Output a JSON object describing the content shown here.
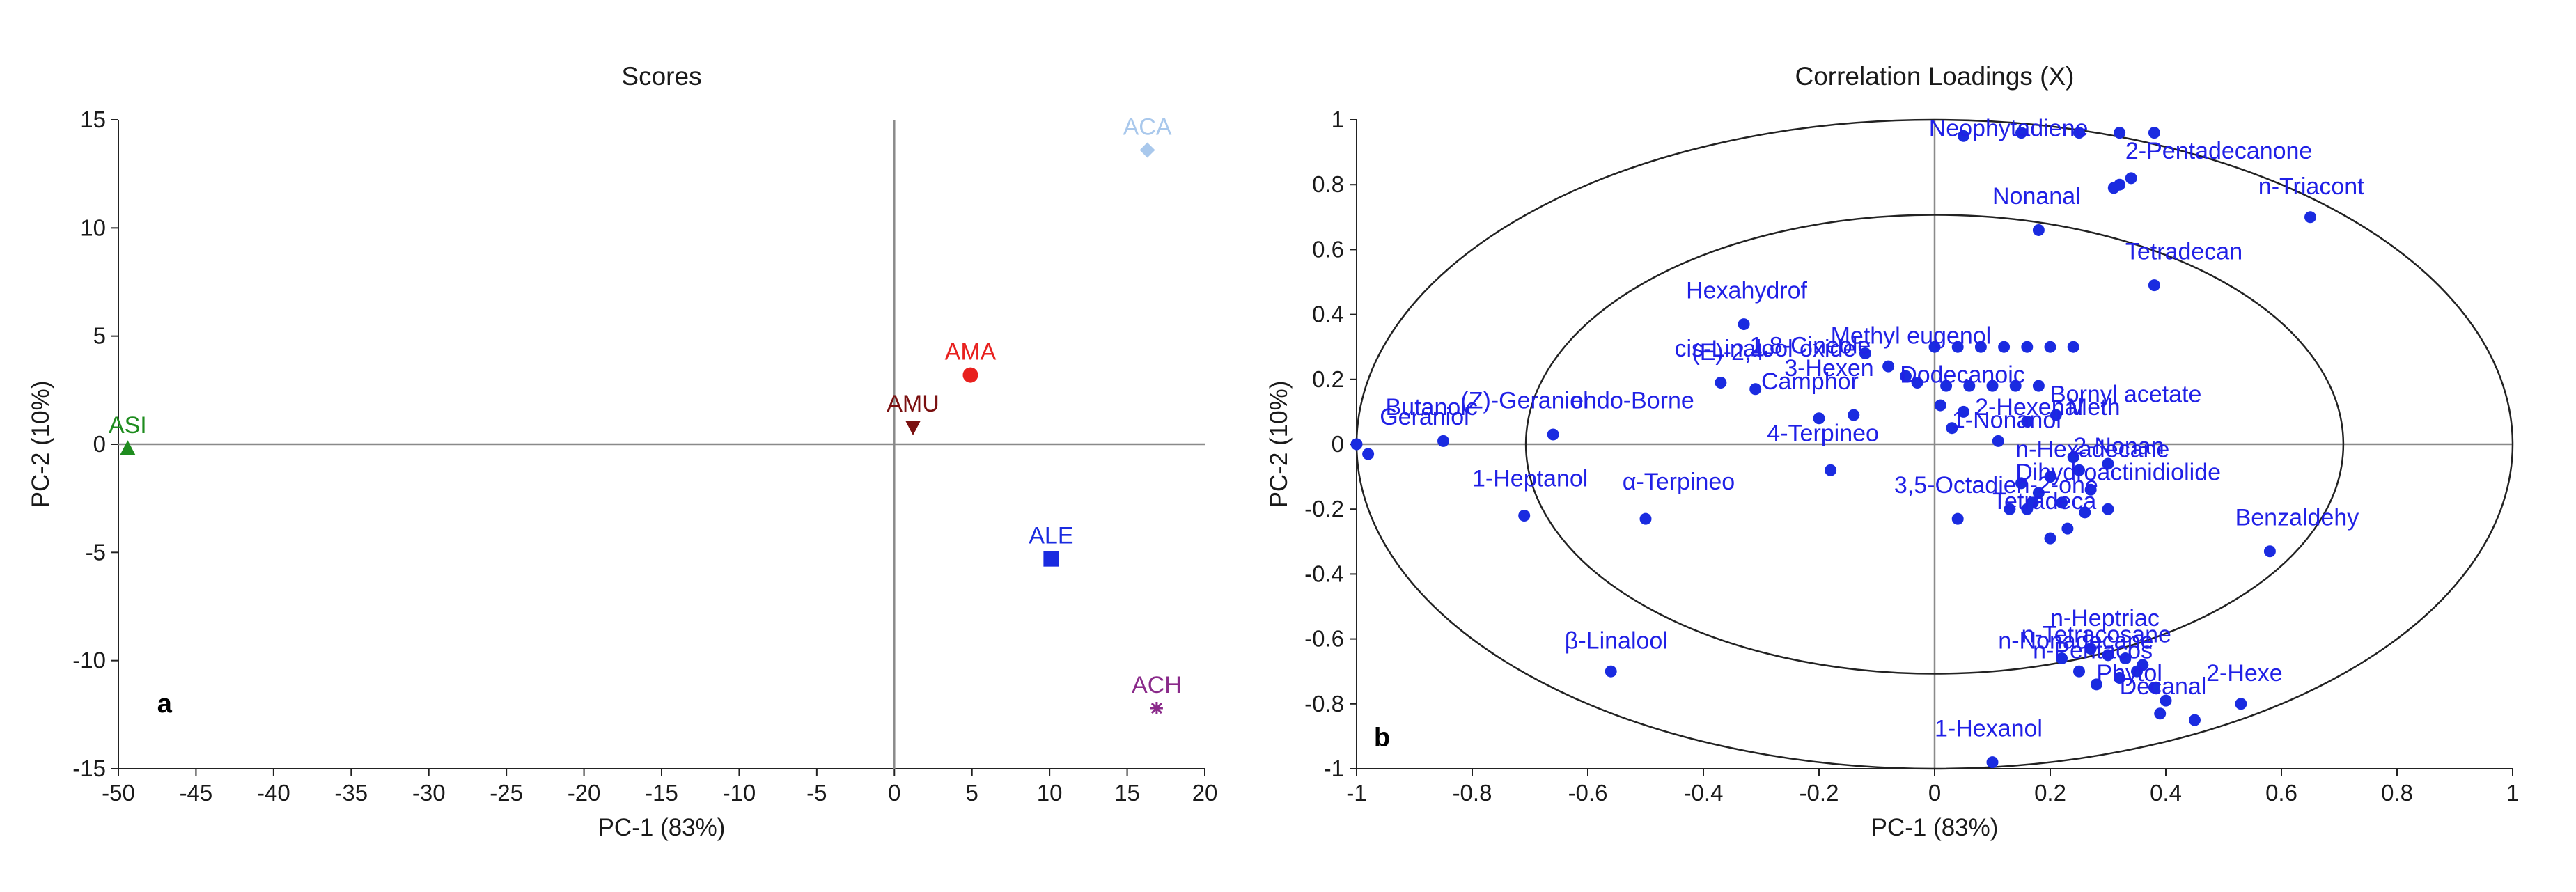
{
  "chart_data": [
    {
      "type": "scatter",
      "title": "Scores",
      "xlabel": "PC-1 (83%)",
      "ylabel": "PC-2 (10%)",
      "panel_label": "a",
      "xlim": [
        -50,
        20
      ],
      "ylim": [
        -15,
        15
      ],
      "xticks": [
        -50,
        -45,
        -40,
        -35,
        -30,
        -25,
        -20,
        -15,
        -10,
        -5,
        0,
        5,
        10,
        15,
        20
      ],
      "yticks": [
        -15,
        -10,
        -5,
        0,
        5,
        10,
        15
      ],
      "points": [
        {
          "label": "ACA",
          "x": 16.3,
          "y": 13.6,
          "marker": "diamond",
          "color": "#a9c8ec"
        },
        {
          "label": "AMA",
          "x": 4.9,
          "y": 3.2,
          "marker": "circle",
          "color": "#e8201e"
        },
        {
          "label": "AMU",
          "x": 1.2,
          "y": 0.8,
          "marker": "triangle-down",
          "color": "#7a1010"
        },
        {
          "label": "ASI",
          "x": -49.4,
          "y": -0.2,
          "marker": "triangle-up",
          "color": "#1e8c1e"
        },
        {
          "label": "ALE",
          "x": 10.1,
          "y": -5.3,
          "marker": "square",
          "color": "#1a2be0"
        },
        {
          "label": "ACH",
          "x": 16.9,
          "y": -12.2,
          "marker": "star",
          "color": "#8a2a8a"
        }
      ]
    },
    {
      "type": "scatter",
      "title": "Correlation Loadings (X)",
      "xlabel": "PC-1 (83%)",
      "ylabel": "PC-2 (10%)",
      "panel_label": "b",
      "xlim": [
        -1,
        1
      ],
      "ylim": [
        -1,
        1
      ],
      "xticks": [
        -1,
        -0.8,
        -0.6,
        -0.4,
        -0.2,
        0,
        0.2,
        0.4,
        0.6,
        0.8,
        1
      ],
      "yticks": [
        -1,
        -0.8,
        -0.6,
        -0.4,
        -0.2,
        0,
        0.2,
        0.4,
        0.6,
        0.8,
        1
      ],
      "circles": [
        1.0,
        0.7071
      ],
      "point_color": "#1a2be0",
      "labels": [
        {
          "text": "Neophytadiene",
          "x": -0.01,
          "y": 0.95
        },
        {
          "text": "2-Pentadecanone",
          "x": 0.33,
          "y": 0.88
        },
        {
          "text": "Nonanal",
          "x": 0.1,
          "y": 0.74
        },
        {
          "text": "n-Triacont",
          "x": 0.56,
          "y": 0.77
        },
        {
          "text": "Tetradecan",
          "x": 0.33,
          "y": 0.57
        },
        {
          "text": "Hexahydrof",
          "x": -0.43,
          "y": 0.45
        },
        {
          "text": "cis-Linalool oxide",
          "x": -0.45,
          "y": 0.27
        },
        {
          "text": "1,8-Cineole",
          "x": -0.32,
          "y": 0.28
        },
        {
          "text": "(E)-2,4-",
          "x": -0.42,
          "y": 0.26
        },
        {
          "text": "Methyl eugenol",
          "x": -0.18,
          "y": 0.31
        },
        {
          "text": "Dodecanoic",
          "x": -0.06,
          "y": 0.19
        },
        {
          "text": "Camphor",
          "x": -0.3,
          "y": 0.17
        },
        {
          "text": "3-Hexen",
          "x": -0.26,
          "y": 0.21
        },
        {
          "text": "Bornyl acetate",
          "x": 0.2,
          "y": 0.13
        },
        {
          "text": "endo-Borne",
          "x": -0.63,
          "y": 0.11
        },
        {
          "text": "(Z)-Geraniol",
          "x": -0.82,
          "y": 0.11
        },
        {
          "text": "Butanoic",
          "x": -0.95,
          "y": 0.09
        },
        {
          "text": "Geraniol",
          "x": -0.96,
          "y": 0.06
        },
        {
          "text": "4-Terpineo",
          "x": -0.29,
          "y": 0.01
        },
        {
          "text": "1-Nonanol",
          "x": 0.03,
          "y": 0.05
        },
        {
          "text": "2-Hexenal",
          "x": 0.07,
          "y": 0.09
        },
        {
          "text": "Meth",
          "x": 0.23,
          "y": 0.09
        },
        {
          "text": "n-Hexadecane",
          "x": 0.14,
          "y": -0.04
        },
        {
          "text": "2-Nonan",
          "x": 0.24,
          "y": -0.03
        },
        {
          "text": "3,5-Octadien-2-one",
          "x": -0.07,
          "y": -0.15
        },
        {
          "text": "Dihydroactinidiolide",
          "x": 0.14,
          "y": -0.11
        },
        {
          "text": "Tetradeca",
          "x": 0.1,
          "y": -0.2
        },
        {
          "text": "1-Heptanol",
          "x": -0.8,
          "y": -0.13
        },
        {
          "text": "α-Terpineo",
          "x": -0.54,
          "y": -0.14
        },
        {
          "text": "Benzaldehy",
          "x": 0.52,
          "y": -0.25
        },
        {
          "text": "n-Heptriac",
          "x": 0.2,
          "y": -0.56
        },
        {
          "text": "n-Tetracosane",
          "x": 0.15,
          "y": -0.61
        },
        {
          "text": "n-Pentacos",
          "x": 0.17,
          "y": -0.66
        },
        {
          "text": "n-Nonadecane",
          "x": 0.11,
          "y": -0.63
        },
        {
          "text": "2-Hexe",
          "x": 0.47,
          "y": -0.73
        },
        {
          "text": "Phytol",
          "x": 0.28,
          "y": -0.73
        },
        {
          "text": "Decanal",
          "x": 0.32,
          "y": -0.77
        },
        {
          "text": "β-Linalool",
          "x": -0.64,
          "y": -0.63
        },
        {
          "text": "1-Hexanol",
          "x": 0.0,
          "y": -0.9
        }
      ],
      "points": [
        [
          -1.0,
          0.0
        ],
        [
          -0.98,
          -0.03
        ],
        [
          -0.85,
          0.01
        ],
        [
          -0.71,
          -0.22
        ],
        [
          -0.66,
          0.03
        ],
        [
          -0.56,
          -0.7
        ],
        [
          -0.5,
          -0.23
        ],
        [
          -0.37,
          0.19
        ],
        [
          -0.33,
          0.37
        ],
        [
          -0.31,
          0.17
        ],
        [
          -0.2,
          0.08
        ],
        [
          -0.18,
          -0.08
        ],
        [
          -0.14,
          0.09
        ],
        [
          -0.12,
          0.28
        ],
        [
          -0.08,
          0.24
        ],
        [
          -0.05,
          0.21
        ],
        [
          -0.03,
          0.19
        ],
        [
          0.0,
          0.3
        ],
        [
          0.04,
          0.3
        ],
        [
          0.08,
          0.3
        ],
        [
          0.12,
          0.3
        ],
        [
          0.16,
          0.3
        ],
        [
          0.2,
          0.3
        ],
        [
          0.24,
          0.3
        ],
        [
          0.02,
          0.18
        ],
        [
          0.06,
          0.18
        ],
        [
          0.1,
          0.18
        ],
        [
          0.14,
          0.18
        ],
        [
          0.18,
          0.18
        ],
        [
          0.01,
          0.12
        ],
        [
          0.05,
          0.1
        ],
        [
          0.03,
          0.05
        ],
        [
          0.11,
          0.01
        ],
        [
          0.16,
          0.07
        ],
        [
          0.21,
          0.09
        ],
        [
          0.05,
          0.95
        ],
        [
          0.15,
          0.96
        ],
        [
          0.25,
          0.96
        ],
        [
          0.32,
          0.96
        ],
        [
          0.38,
          0.96
        ],
        [
          0.31,
          0.79
        ],
        [
          0.32,
          0.8
        ],
        [
          0.34,
          0.82
        ],
        [
          0.18,
          0.66
        ],
        [
          0.38,
          0.49
        ],
        [
          0.65,
          0.7
        ],
        [
          0.58,
          -0.33
        ],
        [
          0.04,
          -0.23
        ],
        [
          0.13,
          -0.2
        ],
        [
          0.17,
          -0.18
        ],
        [
          0.2,
          -0.29
        ],
        [
          0.23,
          -0.26
        ],
        [
          0.26,
          -0.21
        ],
        [
          0.3,
          -0.2
        ],
        [
          0.22,
          -0.18
        ],
        [
          0.18,
          -0.15
        ],
        [
          0.15,
          -0.12
        ],
        [
          0.2,
          -0.1
        ],
        [
          0.25,
          -0.08
        ],
        [
          0.27,
          -0.14
        ],
        [
          0.16,
          -0.2
        ],
        [
          0.24,
          -0.04
        ],
        [
          0.3,
          -0.06
        ],
        [
          0.22,
          -0.66
        ],
        [
          0.27,
          -0.63
        ],
        [
          0.3,
          -0.65
        ],
        [
          0.33,
          -0.66
        ],
        [
          0.36,
          -0.68
        ],
        [
          0.25,
          -0.7
        ],
        [
          0.28,
          -0.74
        ],
        [
          0.32,
          -0.72
        ],
        [
          0.35,
          -0.7
        ],
        [
          0.38,
          -0.75
        ],
        [
          0.39,
          -0.83
        ],
        [
          0.4,
          -0.79
        ],
        [
          0.45,
          -0.85
        ],
        [
          0.53,
          -0.8
        ],
        [
          0.1,
          -0.98
        ]
      ]
    }
  ]
}
